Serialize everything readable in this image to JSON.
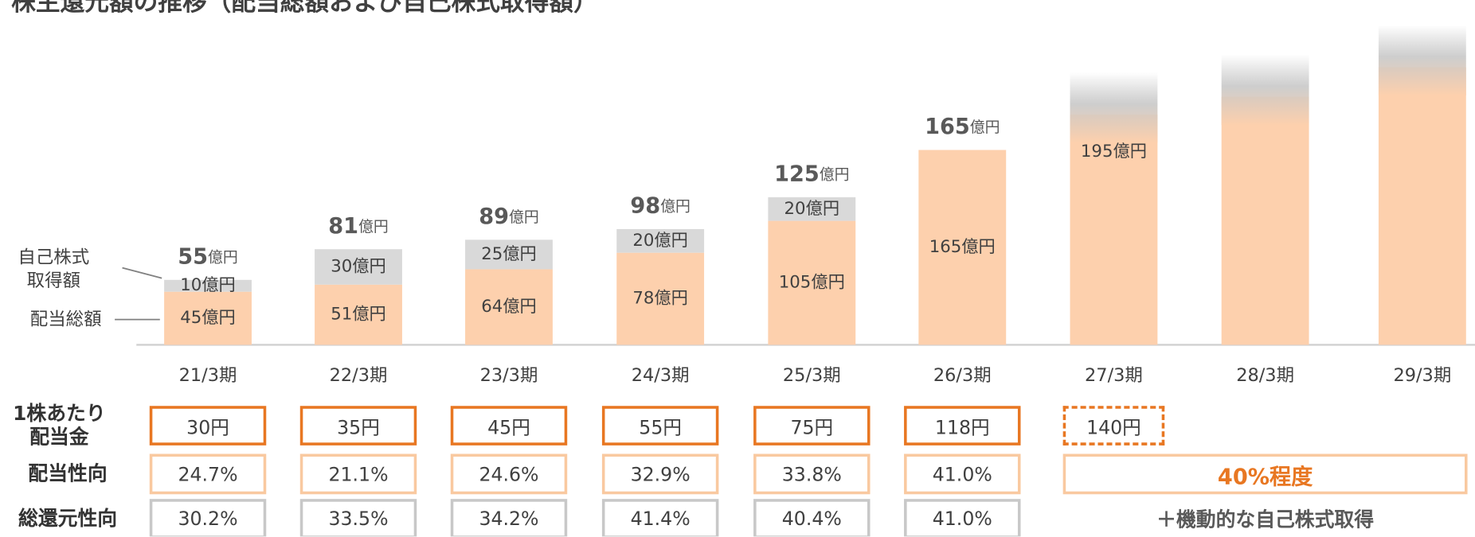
{
  "chart_data": {
    "type": "bar",
    "stacked": true,
    "title": "株主還元額の推移（配当総額および自己株式取得額）",
    "categories": [
      "21/3期",
      "22/3期",
      "23/3期",
      "24/3期",
      "25/3期",
      "26/3期",
      "27/3期",
      "28/3期",
      "29/3期"
    ],
    "series": [
      {
        "name": "配当総額",
        "color": "#fdd0ad",
        "values": [
          45,
          51,
          64,
          78,
          105,
          165,
          195,
          210,
          235
        ],
        "value_labels": [
          "45億円",
          "51億円",
          "64億円",
          "78億円",
          "105億円",
          "165億円",
          "195億円",
          null,
          null
        ]
      },
      {
        "name": "自己株式取得額",
        "color": "#d9d9d9",
        "values": [
          10,
          30,
          25,
          20,
          20,
          null,
          null,
          null,
          null
        ],
        "value_labels": [
          "10億円",
          "30億円",
          "25億円",
          "20億円",
          "20億円",
          null,
          null,
          null,
          null
        ]
      }
    ],
    "totals": [
      55,
      81,
      89,
      98,
      125,
      165,
      null,
      null,
      null
    ],
    "total_unit": "億円",
    "ylim": [
      0,
      292
    ]
  },
  "table": {
    "rows": [
      {
        "label": "1株あたり配当金",
        "cells": [
          "30円",
          "35円",
          "45円",
          "55円",
          "75円",
          "118円",
          "140円"
        ]
      },
      {
        "label": "配当性向",
        "cells": [
          "24.7%",
          "21.1%",
          "24.6%",
          "32.9%",
          "33.8%",
          "41.0%"
        ],
        "note": "40%程度"
      },
      {
        "label": "総還元性向",
        "cells": [
          "30.2%",
          "33.5%",
          "34.2%",
          "41.4%",
          "40.4%",
          "41.0%"
        ],
        "note": "＋機動的な自己株式取得"
      }
    ]
  }
}
